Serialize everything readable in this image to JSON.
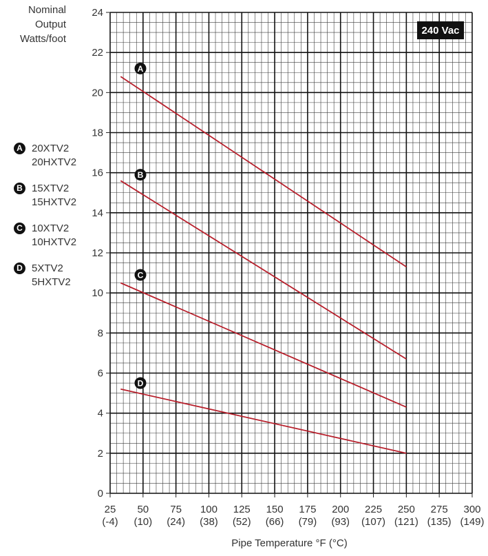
{
  "chart_data": {
    "type": "line",
    "ylabel_lines": [
      "Nominal",
      "Output",
      "Watts/foot"
    ],
    "xlabel": "Pipe Temperature °F (°C)",
    "badge": "240 Vac",
    "xlim": [
      25,
      300
    ],
    "ylim": [
      0,
      24
    ],
    "x_ticks": [
      {
        "f": "25",
        "c": "(-4)"
      },
      {
        "f": "50",
        "c": "(10)"
      },
      {
        "f": "75",
        "c": "(24)"
      },
      {
        "f": "100",
        "c": "(38)"
      },
      {
        "f": "125",
        "c": "(52)"
      },
      {
        "f": "150",
        "c": "(66)"
      },
      {
        "f": "175",
        "c": "(79)"
      },
      {
        "f": "200",
        "c": "(93)"
      },
      {
        "f": "225",
        "c": "(107)"
      },
      {
        "f": "250",
        "c": "(121)"
      },
      {
        "f": "275",
        "c": "(135)"
      },
      {
        "f": "300",
        "c": "(149)"
      }
    ],
    "y_ticks": [
      "0",
      "2",
      "4",
      "6",
      "8",
      "10",
      "12",
      "14",
      "16",
      "18",
      "20",
      "22",
      "24"
    ],
    "series": [
      {
        "marker": "A",
        "x": [
          33,
          250
        ],
        "values": [
          20.8,
          11.3
        ],
        "marker_at": [
          48,
          21.2
        ]
      },
      {
        "marker": "B",
        "x": [
          33,
          250
        ],
        "values": [
          15.6,
          6.7
        ],
        "marker_at": [
          48,
          15.9
        ]
      },
      {
        "marker": "C",
        "x": [
          33,
          250
        ],
        "values": [
          10.5,
          4.3
        ],
        "marker_at": [
          48,
          10.9
        ]
      },
      {
        "marker": "D",
        "x": [
          33,
          250
        ],
        "values": [
          5.2,
          2.0
        ],
        "marker_at": [
          48,
          5.5
        ]
      }
    ],
    "grid": true,
    "line_color": "#b81f2b"
  },
  "legend": [
    {
      "marker": "A",
      "lines": [
        "20XTV2",
        "20HXTV2"
      ]
    },
    {
      "marker": "B",
      "lines": [
        "15XTV2",
        "15HXTV2"
      ]
    },
    {
      "marker": "C",
      "lines": [
        "10XTV2",
        "10HXTV2"
      ]
    },
    {
      "marker": "D",
      "lines": [
        "5XTV2",
        "5HXTV2"
      ]
    }
  ]
}
